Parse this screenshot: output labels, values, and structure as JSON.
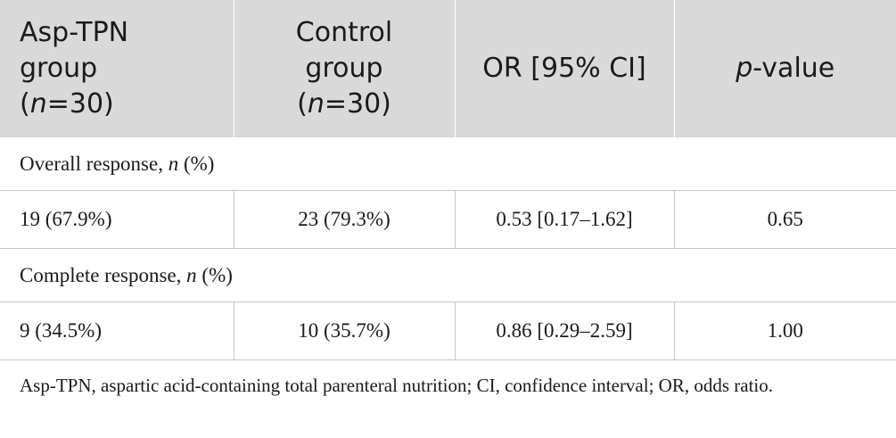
{
  "table": {
    "headers": [
      {
        "line1": "Asp-TPN",
        "line2": "group",
        "n_label": "n",
        "n_value": "=30)"
      },
      {
        "line1": "Control",
        "line2": "group",
        "n_label": "n",
        "n_value": "=30)"
      },
      {
        "text": "OR [95% CI]"
      },
      {
        "italic": "p",
        "rest": "-value"
      }
    ],
    "sections": [
      {
        "label": "Overall response, ",
        "label_italic": "n",
        "label_suffix": " (%)",
        "cells": [
          "19 (67.9%)",
          "23 (79.3%)",
          "0.53 [0.17–1.62]",
          "0.65"
        ]
      },
      {
        "label": "Complete response, ",
        "label_italic": "n",
        "label_suffix": " (%)",
        "cells": [
          "9 (34.5%)",
          "10 (35.7%)",
          "0.86 [0.29–2.59]",
          "1.00"
        ]
      }
    ]
  },
  "footnote": {
    "text": "Asp-TPN, aspartic acid-containing total parenteral nutrition; CI, confidence interval; OR, odds ratio."
  }
}
